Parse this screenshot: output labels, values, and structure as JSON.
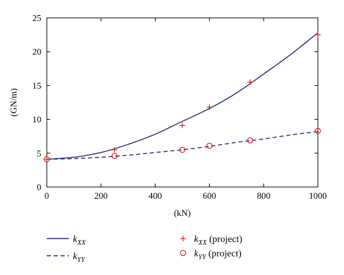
{
  "chart_data": {
    "type": "line",
    "title": "",
    "xlabel": "(kN)",
    "ylabel": "(GN/m)",
    "xlim": [
      0,
      1000
    ],
    "ylim": [
      0,
      25
    ],
    "xticks": [
      0,
      200,
      400,
      600,
      800,
      1000
    ],
    "yticks": [
      0,
      5,
      10,
      15,
      20,
      25
    ],
    "grid": false,
    "legend_position": "bottom",
    "series": [
      {
        "name": "kXX",
        "style": "solid-line",
        "color": "#2a2a6e",
        "x": [
          0,
          100,
          200,
          300,
          400,
          500,
          600,
          700,
          800,
          900,
          1000
        ],
        "y": [
          4.1,
          4.4,
          5.1,
          6.3,
          7.8,
          9.7,
          11.6,
          13.9,
          16.7,
          19.6,
          22.8
        ]
      },
      {
        "name": "kYY",
        "style": "dashed-line",
        "color": "#2a2a6e",
        "x": [
          0,
          100,
          200,
          300,
          400,
          500,
          600,
          700,
          800,
          900,
          1000
        ],
        "y": [
          4.1,
          4.2,
          4.4,
          4.7,
          5.1,
          5.5,
          6.0,
          6.6,
          7.1,
          7.7,
          8.2
        ]
      },
      {
        "name": "kXX (project)",
        "style": "plus-marker",
        "color": "#e0211d",
        "x": [
          0,
          250,
          500,
          600,
          750,
          1000
        ],
        "y": [
          4.1,
          5.5,
          9.1,
          11.8,
          15.5,
          22.5
        ]
      },
      {
        "name": "kYY (project)",
        "style": "circle-marker",
        "color": "#e0211d",
        "x": [
          0,
          250,
          500,
          600,
          750,
          1000
        ],
        "y": [
          4.1,
          4.6,
          5.5,
          6.1,
          6.9,
          8.3
        ]
      }
    ]
  },
  "legend": {
    "kxx_main": "k",
    "kxx_sub": "XX",
    "kyy_main": "k",
    "kyy_sub": "YY",
    "kxx_proj_main": "k",
    "kxx_proj_sub": "XX",
    "kxx_proj_suffix": " (project)",
    "kyy_proj_main": "k",
    "kyy_proj_sub": "YY",
    "kyy_proj_suffix": " (project)"
  }
}
